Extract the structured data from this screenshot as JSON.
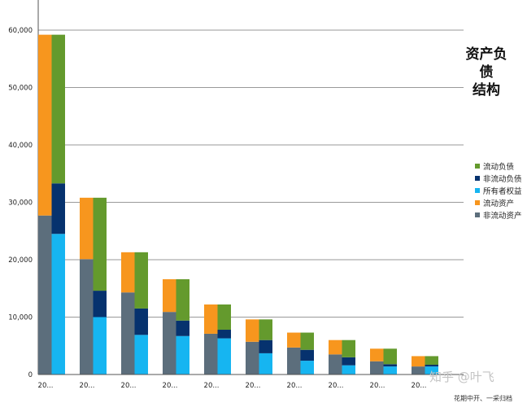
{
  "chart_data": {
    "type": "bar",
    "stacked": true,
    "title_lines": [
      "资产负债",
      "结构"
    ],
    "categories": [
      "20...",
      "20...",
      "20...",
      "20...",
      "20...",
      "20...",
      "20...",
      "20...",
      "20...",
      "20..."
    ],
    "ylim": [
      0,
      65000
    ],
    "yticks": [
      0,
      10000,
      20000,
      30000,
      40000,
      50000,
      60000
    ],
    "ytick_labels": [
      "0",
      "10,000",
      "20,000",
      "30,000",
      "40,000",
      "50,000",
      "60,000"
    ],
    "grid": true,
    "legend_position": "right",
    "asset_series": [
      {
        "name": "非流动资产",
        "color": "#5c6e7c",
        "values": [
          27700,
          20100,
          14300,
          10900,
          7100,
          5700,
          4700,
          3500,
          2300,
          1400
        ]
      },
      {
        "name": "流动资产",
        "color": "#f7961e",
        "values": [
          31500,
          10700,
          7000,
          5700,
          5100,
          3900,
          2600,
          2500,
          2200,
          1800
        ]
      }
    ],
    "liability_equity_series": [
      {
        "name": "所有者权益",
        "color": "#16b5f1",
        "values": [
          24500,
          10000,
          6900,
          6700,
          6300,
          3700,
          2400,
          1600,
          1400,
          1400
        ]
      },
      {
        "name": "非流动负债",
        "color": "#06326e",
        "values": [
          8800,
          4600,
          4600,
          2700,
          1500,
          2300,
          1900,
          1400,
          400,
          300
        ]
      },
      {
        "name": "流动负债",
        "color": "#649a2d",
        "values": [
          25900,
          16200,
          9800,
          7200,
          4400,
          3600,
          3000,
          3000,
          2700,
          1500
        ]
      }
    ]
  },
  "legend_items": [
    {
      "label": "流动负债",
      "color": "#649a2d"
    },
    {
      "label": "非流动负债",
      "color": "#06326e"
    },
    {
      "label": "所有者权益",
      "color": "#16b5f1"
    },
    {
      "label": "流动资产",
      "color": "#f7961e"
    },
    {
      "label": "非流动资产",
      "color": "#5c6e7c"
    }
  ],
  "watermark": "知乎 @叶飞",
  "bottom_note": "花期中开、一采归档"
}
